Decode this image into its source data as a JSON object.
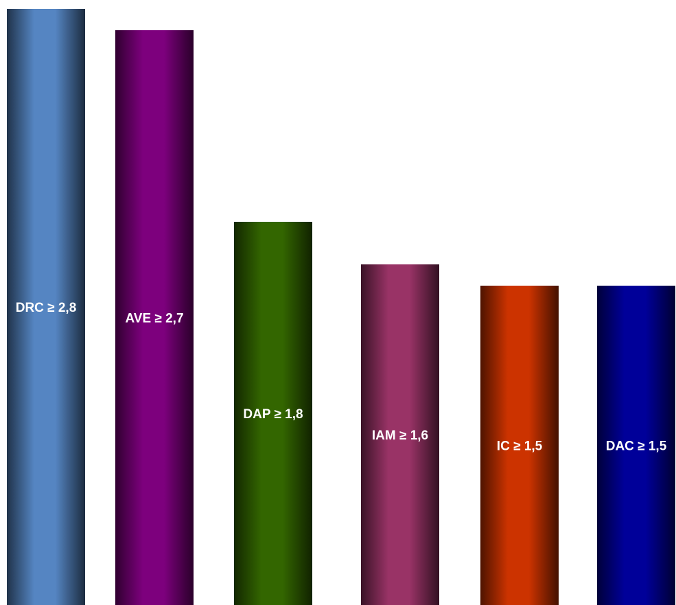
{
  "chart_data": {
    "type": "bar",
    "categories": [
      "DRC",
      "AVE",
      "DAP",
      "IAM",
      "IC",
      "DAC"
    ],
    "values": [
      2.8,
      2.7,
      1.8,
      1.6,
      1.5,
      1.5
    ],
    "labels": [
      "DRC ≥ 2,8",
      "AVE ≥ 2,7",
      "DAP ≥ 1,8",
      "IAM ≥ 1,6",
      "IC ≥ 1,5",
      "DAC ≥ 1,5"
    ],
    "colors": [
      "#5585c2",
      "#7d007d",
      "#336600",
      "#993366",
      "#cc3300",
      "#000099"
    ],
    "ylim": [
      0,
      2.8
    ],
    "grid": false,
    "legend": false,
    "bar_style": "cylinder-gradient"
  }
}
